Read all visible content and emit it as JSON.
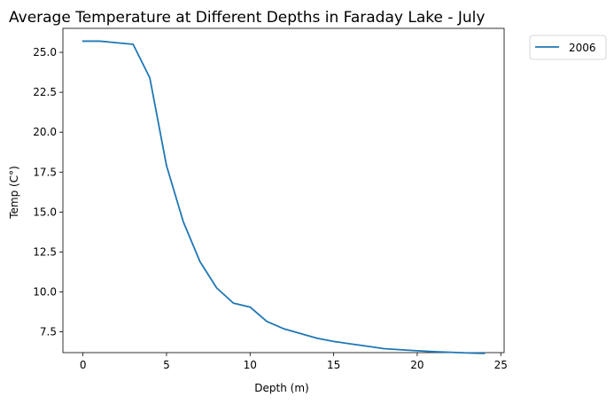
{
  "chart_data": {
    "type": "line",
    "title": "Average Temperature at Different Depths in Faraday Lake - July",
    "xlabel": "Depth (m)",
    "ylabel": "Temp (C°)",
    "xlim": [
      -1.2,
      25.2
    ],
    "ylim": [
      6.2,
      26.5
    ],
    "xticks": [
      0,
      5,
      10,
      15,
      20,
      25
    ],
    "xtick_labels": [
      "0",
      "5",
      "10",
      "15",
      "20",
      "25"
    ],
    "yticks": [
      7.5,
      10.0,
      12.5,
      15.0,
      17.5,
      20.0,
      22.5,
      25.0
    ],
    "ytick_labels": [
      "7.5",
      "10.0",
      "12.5",
      "15.0",
      "17.5",
      "20.0",
      "22.5",
      "25.0"
    ],
    "grid": false,
    "legend_position": "outside-top-right",
    "series": [
      {
        "name": "2006",
        "color": "#1f77b4",
        "x": [
          0,
          1,
          2,
          3,
          4,
          5,
          6,
          7,
          8,
          9,
          10,
          11,
          12,
          13,
          14,
          15,
          16,
          17,
          18,
          19,
          20,
          21,
          22,
          23,
          24
        ],
        "y": [
          25.7,
          25.7,
          25.6,
          25.5,
          23.4,
          17.9,
          14.4,
          11.9,
          10.25,
          9.3,
          9.05,
          8.15,
          7.7,
          7.4,
          7.1,
          6.9,
          6.75,
          6.6,
          6.45,
          6.38,
          6.32,
          6.26,
          6.22,
          6.18,
          6.15
        ]
      }
    ]
  }
}
